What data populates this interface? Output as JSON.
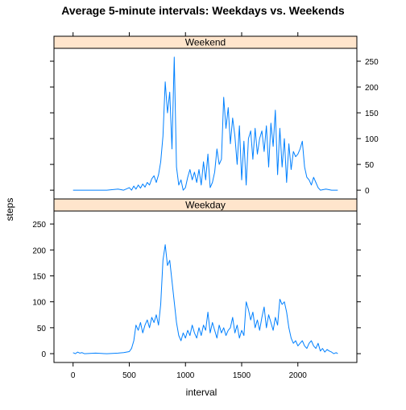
{
  "chart_data": {
    "type": "line",
    "title": "Average  5-minute intervals: Weekdays vs. Weekends",
    "xlabel": "interval",
    "ylabel": "steps",
    "xlim": [
      -170,
      2525
    ],
    "ylim": [
      -17,
      275
    ],
    "x_ticks": [
      0,
      500,
      1000,
      1500,
      2000
    ],
    "y_ticks": [
      0,
      50,
      100,
      150,
      200,
      250
    ],
    "line_color": "#0080ff",
    "strip_color": "#ffe5cc",
    "panels": [
      {
        "name": "Weekend",
        "x": [
          0,
          300,
          400,
          450,
          500,
          520,
          540,
          560,
          580,
          600,
          620,
          640,
          660,
          680,
          700,
          720,
          740,
          760,
          780,
          800,
          820,
          840,
          860,
          880,
          900,
          920,
          940,
          960,
          980,
          1000,
          1020,
          1040,
          1060,
          1080,
          1100,
          1120,
          1140,
          1160,
          1180,
          1200,
          1220,
          1240,
          1260,
          1280,
          1300,
          1320,
          1340,
          1360,
          1380,
          1400,
          1420,
          1440,
          1460,
          1480,
          1500,
          1520,
          1540,
          1560,
          1580,
          1600,
          1620,
          1640,
          1660,
          1680,
          1700,
          1720,
          1740,
          1760,
          1780,
          1800,
          1820,
          1840,
          1860,
          1880,
          1900,
          1920,
          1940,
          1960,
          1980,
          2000,
          2020,
          2040,
          2060,
          2080,
          2100,
          2120,
          2140,
          2160,
          2180,
          2200,
          2250,
          2300,
          2355
        ],
        "values": [
          0,
          0,
          2,
          0,
          5,
          0,
          8,
          2,
          10,
          4,
          12,
          6,
          15,
          10,
          22,
          28,
          15,
          30,
          55,
          105,
          210,
          150,
          190,
          80,
          258,
          45,
          10,
          20,
          0,
          5,
          25,
          40,
          20,
          35,
          15,
          40,
          10,
          55,
          20,
          70,
          5,
          15,
          35,
          80,
          50,
          60,
          180,
          120,
          160,
          90,
          140,
          105,
          50,
          125,
          20,
          95,
          10,
          100,
          115,
          60,
          120,
          70,
          100,
          115,
          75,
          125,
          45,
          130,
          85,
          155,
          30,
          120,
          45,
          100,
          15,
          90,
          40,
          75,
          65,
          70,
          80,
          95,
          45,
          25,
          20,
          10,
          25,
          15,
          5,
          0,
          2,
          0,
          0
        ]
      },
      {
        "name": "Weekday",
        "x": [
          0,
          20,
          40,
          60,
          80,
          100,
          200,
          300,
          400,
          450,
          500,
          520,
          540,
          560,
          580,
          600,
          620,
          640,
          660,
          680,
          700,
          720,
          740,
          760,
          780,
          800,
          820,
          840,
          860,
          880,
          900,
          920,
          940,
          960,
          980,
          1000,
          1020,
          1040,
          1060,
          1080,
          1100,
          1120,
          1140,
          1160,
          1180,
          1200,
          1220,
          1240,
          1260,
          1280,
          1300,
          1320,
          1340,
          1360,
          1380,
          1400,
          1420,
          1440,
          1460,
          1480,
          1500,
          1520,
          1540,
          1560,
          1580,
          1600,
          1620,
          1640,
          1660,
          1680,
          1700,
          1720,
          1740,
          1760,
          1780,
          1800,
          1820,
          1840,
          1860,
          1880,
          1900,
          1920,
          1940,
          1960,
          1980,
          2000,
          2020,
          2040,
          2060,
          2080,
          2100,
          2120,
          2140,
          2160,
          2180,
          2200,
          2220,
          2240,
          2260,
          2280,
          2300,
          2320,
          2340,
          2355
        ],
        "values": [
          2,
          0,
          3,
          1,
          2,
          0,
          1,
          0,
          1,
          2,
          4,
          10,
          25,
          55,
          45,
          60,
          40,
          55,
          65,
          50,
          70,
          60,
          75,
          55,
          95,
          180,
          210,
          170,
          180,
          140,
          100,
          60,
          35,
          25,
          40,
          30,
          45,
          35,
          55,
          40,
          30,
          50,
          35,
          55,
          45,
          80,
          40,
          60,
          45,
          30,
          55,
          40,
          50,
          35,
          45,
          50,
          70,
          40,
          55,
          30,
          45,
          35,
          100,
          85,
          65,
          80,
          50,
          65,
          45,
          70,
          90,
          50,
          75,
          60,
          45,
          70,
          55,
          105,
          95,
          100,
          80,
          50,
          30,
          20,
          25,
          15,
          20,
          25,
          15,
          10,
          20,
          25,
          15,
          10,
          20,
          5,
          10,
          3,
          8,
          5,
          3,
          0,
          2,
          0
        ]
      }
    ]
  }
}
